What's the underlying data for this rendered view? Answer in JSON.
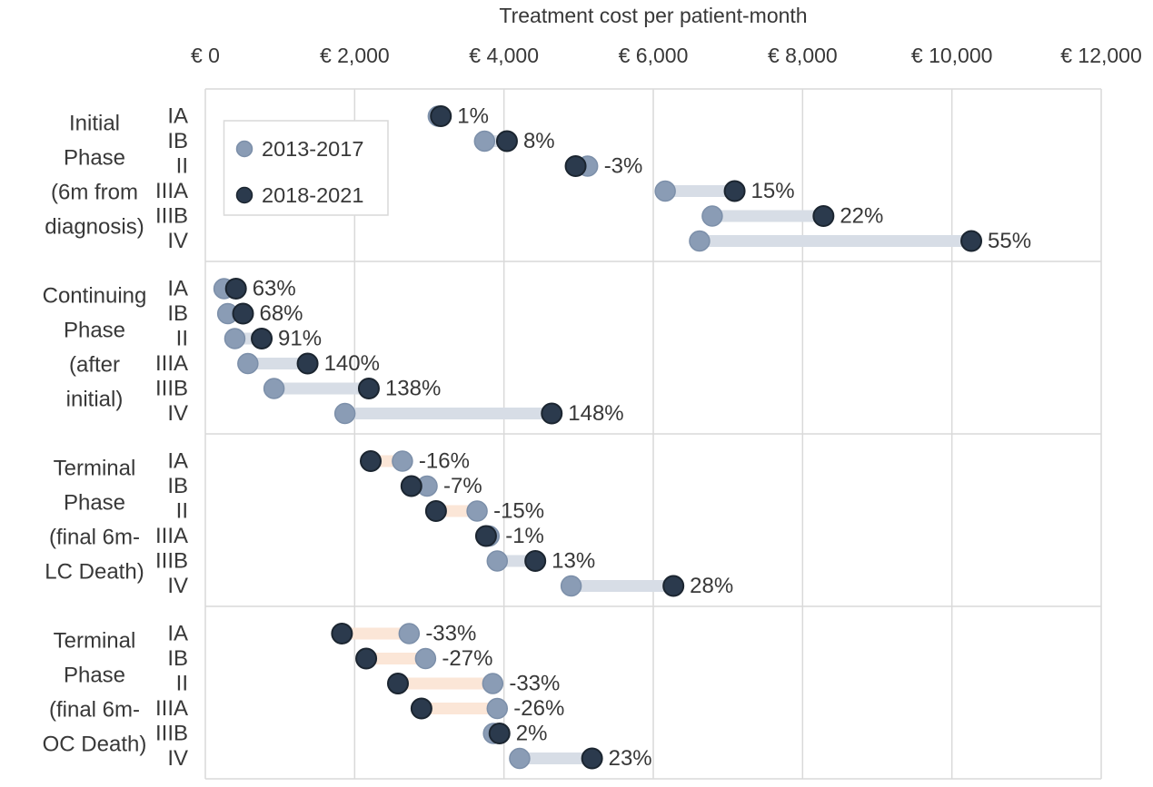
{
  "chart_data": {
    "type": "scatter",
    "variant": "dumbbell",
    "title": "Treatment cost per patient-month",
    "xlabel": "Treatment cost per patient-month",
    "ylabel": "",
    "xlim": [
      0,
      12000
    ],
    "grid": "vertical-only",
    "legend_position": "top-left-inside",
    "x_ticks": [
      {
        "label": "€ 0",
        "value": 0
      },
      {
        "label": "€ 2,000",
        "value": 2000
      },
      {
        "label": "€ 4,000",
        "value": 4000
      },
      {
        "label": "€ 6,000",
        "value": 6000
      },
      {
        "label": "€ 8,000",
        "value": 8000
      },
      {
        "label": "€ 10,000",
        "value": 10000
      },
      {
        "label": "€ 12,000",
        "value": 12000
      }
    ],
    "series_names": [
      "2013-2017",
      "2018-2021"
    ],
    "phases": [
      {
        "label_lines": [
          "Initial",
          "Phase",
          "(6m from",
          "diagnosis)"
        ],
        "rows": [
          {
            "stage": "IA",
            "v_2013_2017": 3120,
            "v_2018_2021": 3155,
            "change": "1%"
          },
          {
            "stage": "IB",
            "v_2013_2017": 3740,
            "v_2018_2021": 4040,
            "change": "8%"
          },
          {
            "stage": "II",
            "v_2013_2017": 5120,
            "v_2018_2021": 4960,
            "change": "-3%"
          },
          {
            "stage": "IIIA",
            "v_2013_2017": 6160,
            "v_2018_2021": 7090,
            "change": "15%"
          },
          {
            "stage": "IIIB",
            "v_2013_2017": 6790,
            "v_2018_2021": 8280,
            "change": "22%"
          },
          {
            "stage": "IV",
            "v_2013_2017": 6620,
            "v_2018_2021": 10260,
            "change": "55%"
          }
        ]
      },
      {
        "label_lines": [
          "Continuing",
          "Phase",
          "(after",
          "initial)"
        ],
        "rows": [
          {
            "stage": "IA",
            "v_2013_2017": 250,
            "v_2018_2021": 410,
            "change": "63%"
          },
          {
            "stage": "IB",
            "v_2013_2017": 300,
            "v_2018_2021": 505,
            "change": "68%"
          },
          {
            "stage": "II",
            "v_2013_2017": 395,
            "v_2018_2021": 755,
            "change": "91%"
          },
          {
            "stage": "IIIA",
            "v_2013_2017": 570,
            "v_2018_2021": 1370,
            "change": "140%"
          },
          {
            "stage": "IIIB",
            "v_2013_2017": 920,
            "v_2018_2021": 2190,
            "change": "138%"
          },
          {
            "stage": "IV",
            "v_2013_2017": 1870,
            "v_2018_2021": 4640,
            "change": "148%"
          }
        ]
      },
      {
        "label_lines": [
          "Terminal",
          "Phase",
          "(final 6m-",
          "LC Death)"
        ],
        "rows": [
          {
            "stage": "IA",
            "v_2013_2017": 2640,
            "v_2018_2021": 2215,
            "change": "-16%"
          },
          {
            "stage": "IB",
            "v_2013_2017": 2970,
            "v_2018_2021": 2760,
            "change": "-7%"
          },
          {
            "stage": "II",
            "v_2013_2017": 3640,
            "v_2018_2021": 3090,
            "change": "-15%"
          },
          {
            "stage": "IIIA",
            "v_2013_2017": 3800,
            "v_2018_2021": 3760,
            "change": "-1%"
          },
          {
            "stage": "IIIB",
            "v_2013_2017": 3910,
            "v_2018_2021": 4420,
            "change": "13%"
          },
          {
            "stage": "IV",
            "v_2013_2017": 4900,
            "v_2018_2021": 6270,
            "change": "28%"
          }
        ]
      },
      {
        "label_lines": [
          "Terminal",
          "Phase",
          "(final 6m-",
          "OC Death)"
        ],
        "rows": [
          {
            "stage": "IA",
            "v_2013_2017": 2730,
            "v_2018_2021": 1830,
            "change": "-33%"
          },
          {
            "stage": "IB",
            "v_2013_2017": 2950,
            "v_2018_2021": 2155,
            "change": "-27%"
          },
          {
            "stage": "II",
            "v_2013_2017": 3850,
            "v_2018_2021": 2580,
            "change": "-33%"
          },
          {
            "stage": "IIIA",
            "v_2013_2017": 3910,
            "v_2018_2021": 2895,
            "change": "-26%"
          },
          {
            "stage": "IIIB",
            "v_2013_2017": 3860,
            "v_2018_2021": 3940,
            "change": "2%"
          },
          {
            "stage": "IV",
            "v_2013_2017": 4210,
            "v_2018_2021": 5180,
            "change": "23%"
          }
        ]
      }
    ]
  },
  "legend": {
    "items": [
      {
        "label": "2013-2017",
        "series_key": "s2013"
      },
      {
        "label": "2018-2021",
        "series_key": "s2018"
      }
    ]
  },
  "colors": {
    "series_2013_2017_fill": "#8A9CB5",
    "series_2013_2017_stroke": "#7C8FA9",
    "series_2018_2021_fill": "#2B3A4D",
    "series_2018_2021_stroke": "#1B2530",
    "bar_increase": "#D7DDE6",
    "bar_decrease": "#FBE6D7",
    "gridline": "#D9D9D9",
    "text": "#383838",
    "background": "#FFFFFF"
  }
}
